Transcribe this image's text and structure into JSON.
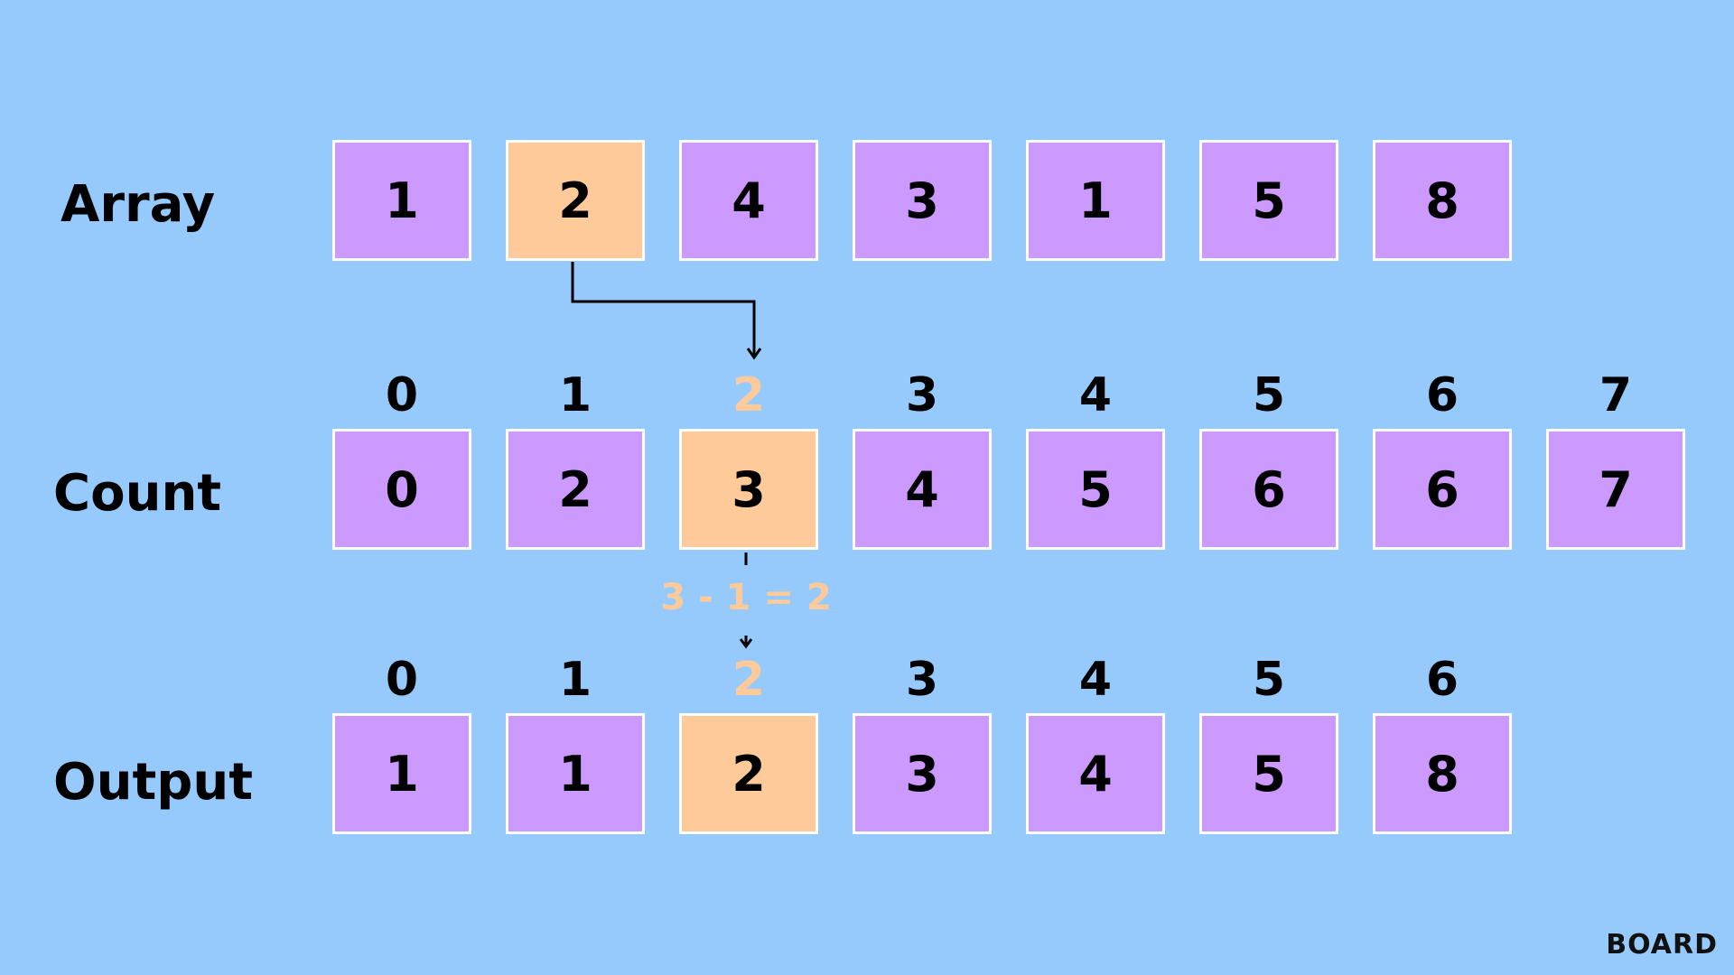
{
  "rows": {
    "array": {
      "label": "Array",
      "values": [
        "1",
        "2",
        "4",
        "3",
        "1",
        "5",
        "8"
      ],
      "highlight": 1
    },
    "count": {
      "label": "Count",
      "indices": [
        "0",
        "1",
        "2",
        "3",
        "4",
        "5",
        "6",
        "7"
      ],
      "values": [
        "0",
        "2",
        "3",
        "4",
        "5",
        "6",
        "6",
        "7"
      ],
      "highlight": 2
    },
    "output": {
      "label": "Output",
      "indices": [
        "0",
        "1",
        "2",
        "3",
        "4",
        "5",
        "6"
      ],
      "values": [
        "1",
        "1",
        "2",
        "3",
        "4",
        "5",
        "8"
      ],
      "highlight": 2
    }
  },
  "formula": "3 - 1 = 2",
  "logo": "BOARD",
  "colors": {
    "background": "#97cafc",
    "cell": "#cc99ff",
    "highlight": "#ffca99",
    "border": "#ffffff"
  }
}
